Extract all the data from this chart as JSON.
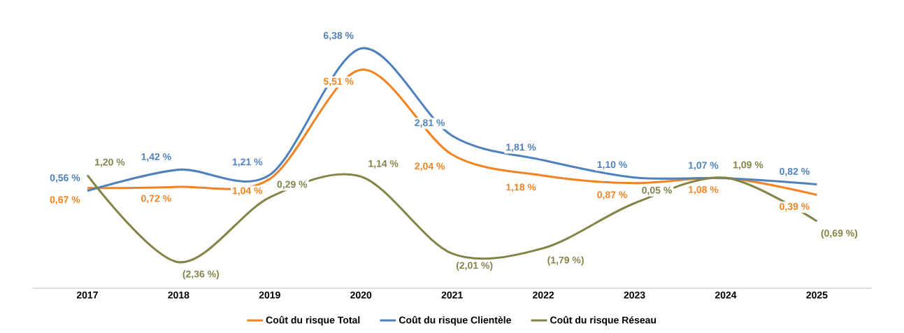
{
  "chart_data": {
    "type": "line",
    "categories": [
      "2017",
      "2018",
      "2019",
      "2020",
      "2021",
      "2022",
      "2023",
      "2024",
      "2025"
    ],
    "legend": "bottom",
    "marker": "none",
    "line_style": "solid",
    "grid": false,
    "series": [
      {
        "name": "Coût du risque Total",
        "color": "#f58220",
        "values": [
          0.67,
          0.72,
          1.04,
          5.51,
          2.04,
          1.18,
          0.87,
          1.08,
          0.39
        ],
        "value_labels": [
          "0,67 %",
          "0,72 %",
          "1,04 %",
          "5,51 %",
          "2,04 %",
          "1,18 %",
          "0,87 %",
          "1,08 %",
          "0,39 %"
        ]
      },
      {
        "name": "Coût du risque Clientèle",
        "color": "#4f81bd",
        "values": [
          0.56,
          1.42,
          1.21,
          6.38,
          2.81,
          1.81,
          1.1,
          1.07,
          0.82
        ],
        "value_labels": [
          "0,56 %",
          "1,42 %",
          "1,21 %",
          "6,38 %",
          "2,81 %",
          "1,81 %",
          "1,10 %",
          "1,07 %",
          "0,82 %"
        ]
      },
      {
        "name": "Coût du risque Réseau",
        "color": "#828448",
        "values": [
          1.2,
          -2.36,
          0.29,
          1.14,
          -2.01,
          -1.79,
          0.05,
          1.09,
          -0.69
        ],
        "value_labels": [
          "1,20 %",
          "(2,36 %)",
          "0,29 %",
          "1,14 %",
          "(2,01 %)",
          "(1,79 %)",
          "0,05 %",
          "1,09 %",
          "(0,69 %)"
        ]
      }
    ]
  }
}
